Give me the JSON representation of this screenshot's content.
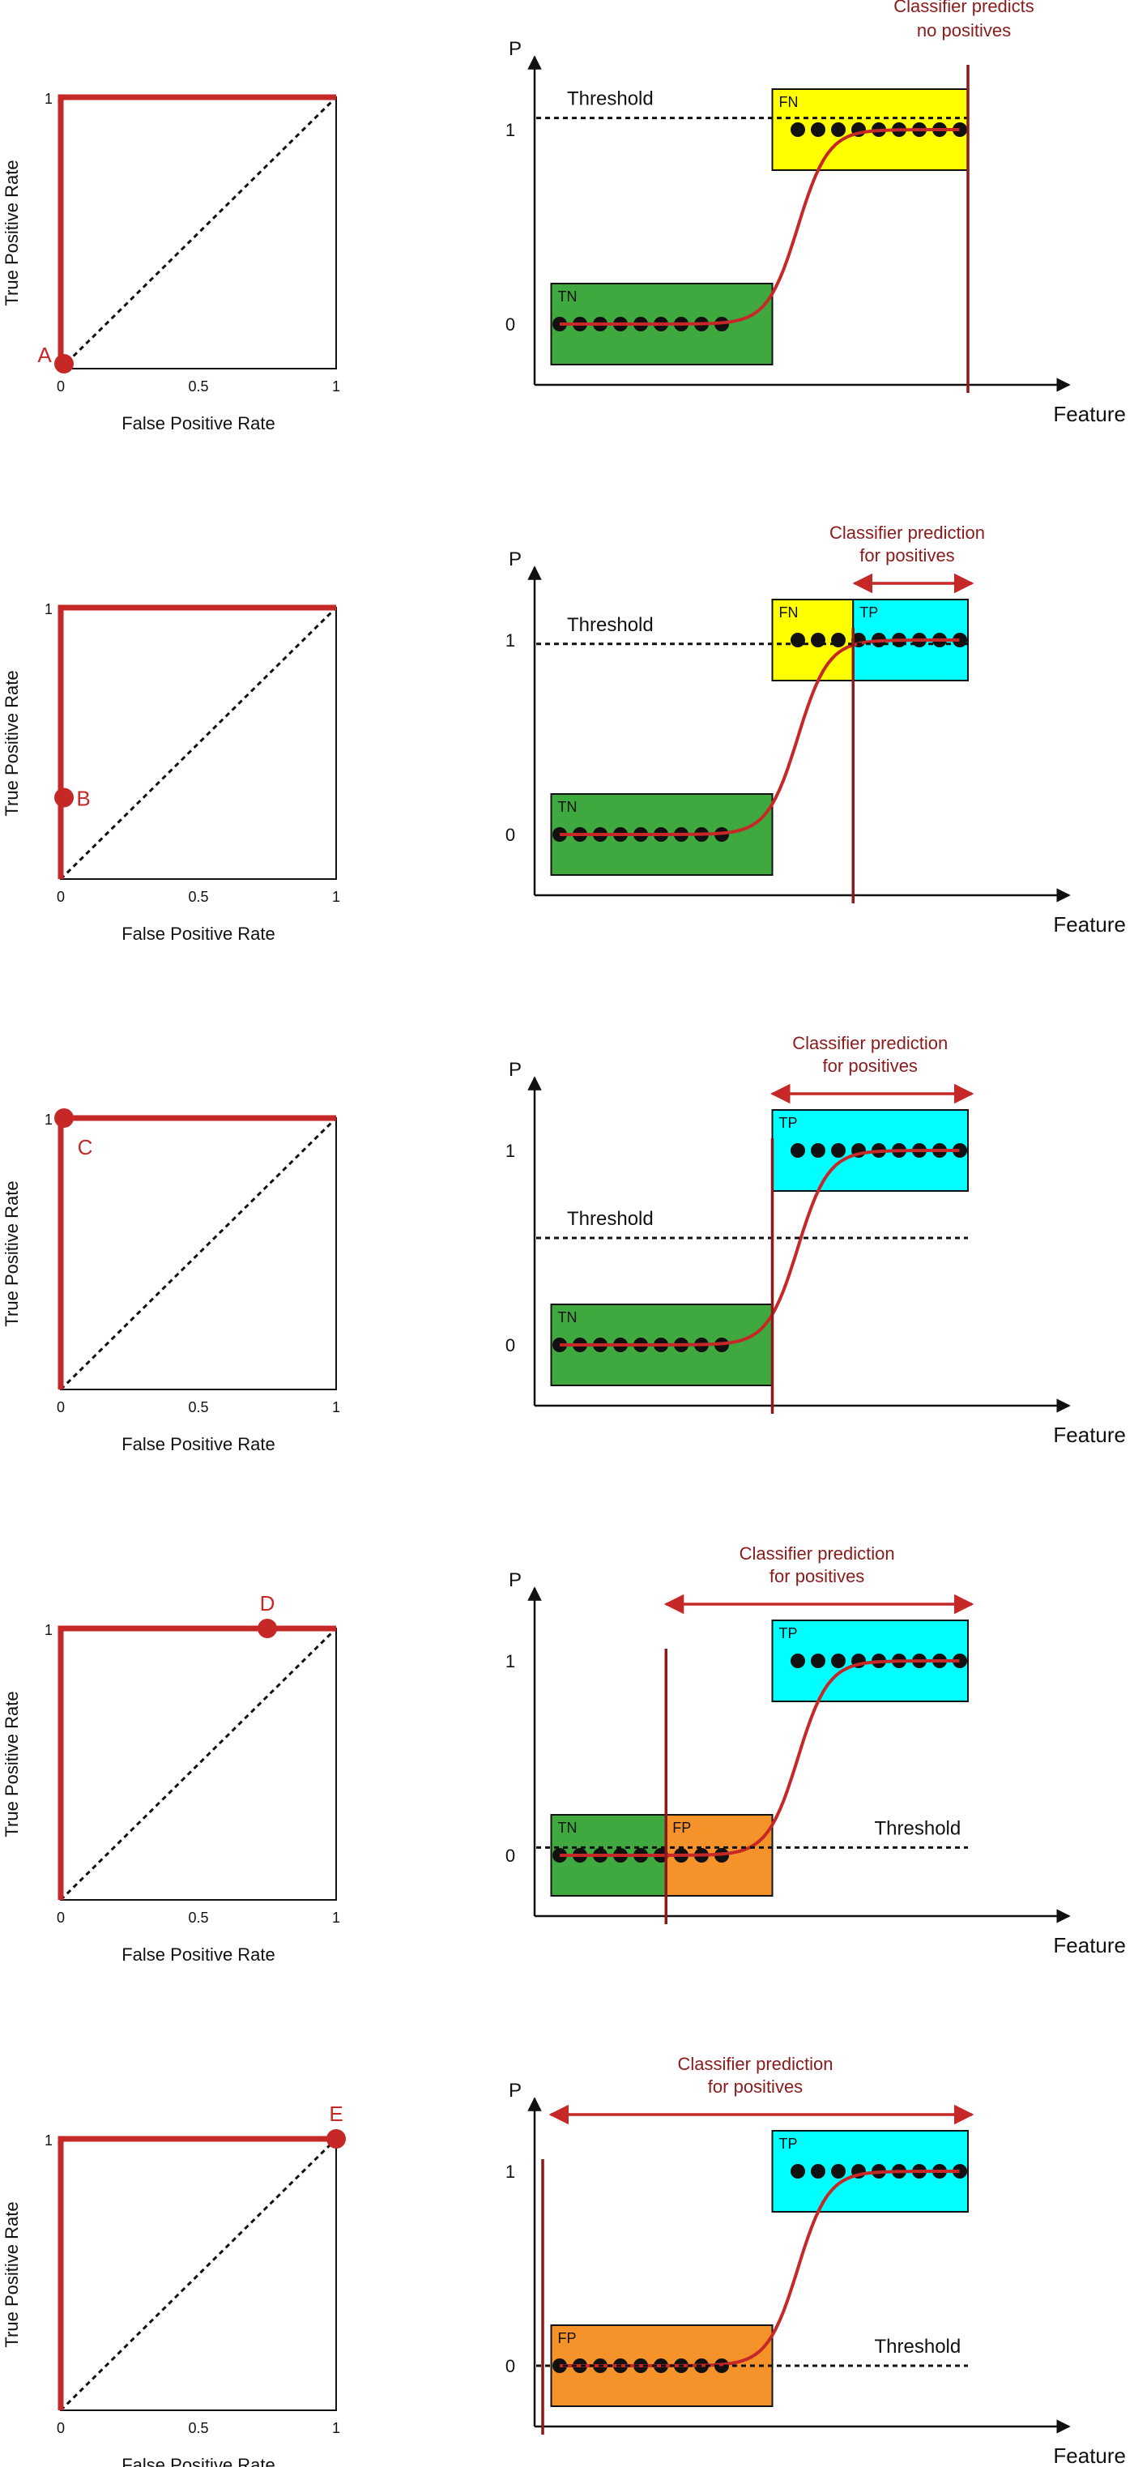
{
  "labels": {
    "roc_x_axis": "False Positive Rate",
    "roc_y_axis": "True Positive Rate",
    "tick_0": "0",
    "tick_half": "0.5",
    "tick_1": "1",
    "p_axis": "P",
    "feature_axis": "Feature",
    "threshold": "Threshold",
    "p_tick_0": "0",
    "p_tick_1": "1"
  },
  "colors": {
    "curve": "#c62828",
    "annotation": "#8b1a1a",
    "tn_box": "#3fa83f",
    "fn_box": "#ffff00",
    "tp_box": "#00ffff",
    "fp_box": "#f5922a",
    "dots": "#111111",
    "axis": "#111111"
  },
  "scenarios": [
    {
      "id": "A",
      "point_label": "A",
      "roc_point": [
        0,
        0
      ],
      "annotation": [
        "Classifier predicts",
        "no positives"
      ],
      "show_prediction_arrow": false,
      "threshold_level": 1.06,
      "threshold_label_side": "left",
      "threshold_line_span": "full",
      "cutoff_feature": 1.0,
      "boxes": [
        {
          "label": "TN",
          "type": "tn",
          "x0": 0.02,
          "x1": 0.54,
          "y_center": 0
        },
        {
          "label": "FN",
          "type": "fn",
          "x0": 0.54,
          "x1": 1.0,
          "y_center": 1
        }
      ]
    },
    {
      "id": "B",
      "point_label": "B",
      "roc_point": [
        0,
        0.3
      ],
      "annotation": [
        "Classifier prediction",
        "for positives"
      ],
      "show_prediction_arrow": true,
      "threshold_level": 0.98,
      "threshold_label_side": "left",
      "threshold_line_span": "full",
      "cutoff_feature": 0.73,
      "boxes": [
        {
          "label": "TN",
          "type": "tn",
          "x0": 0.02,
          "x1": 0.54,
          "y_center": 0
        },
        {
          "label": "FN",
          "type": "fn",
          "x0": 0.54,
          "x1": 0.73,
          "y_center": 1
        },
        {
          "label": "TP",
          "type": "tp",
          "x0": 0.73,
          "x1": 1.0,
          "y_center": 1
        }
      ]
    },
    {
      "id": "C",
      "point_label": "C",
      "roc_point": [
        0,
        1
      ],
      "annotation": [
        "Classifier prediction",
        "for positives"
      ],
      "show_prediction_arrow": true,
      "threshold_level": 0.55,
      "threshold_label_side": "left",
      "threshold_line_span": "full",
      "cutoff_feature": 0.54,
      "boxes": [
        {
          "label": "TN",
          "type": "tn",
          "x0": 0.02,
          "x1": 0.54,
          "y_center": 0
        },
        {
          "label": "TP",
          "type": "tp",
          "x0": 0.54,
          "x1": 1.0,
          "y_center": 1
        }
      ]
    },
    {
      "id": "D",
      "point_label": "D",
      "roc_point": [
        0.75,
        1
      ],
      "annotation": [
        "Classifier prediction",
        "for positives"
      ],
      "show_prediction_arrow": true,
      "threshold_level": 0.04,
      "threshold_label_side": "right",
      "threshold_line_span": "full",
      "cutoff_feature": 0.29,
      "boxes": [
        {
          "label": "TN",
          "type": "tn",
          "x0": 0.02,
          "x1": 0.29,
          "y_center": 0
        },
        {
          "label": "FP",
          "type": "fp",
          "x0": 0.29,
          "x1": 0.54,
          "y_center": 0
        },
        {
          "label": "TP",
          "type": "tp",
          "x0": 0.54,
          "x1": 1.0,
          "y_center": 1
        }
      ]
    },
    {
      "id": "E",
      "point_label": "E",
      "roc_point": [
        1,
        1
      ],
      "annotation": [
        "Classifier prediction",
        "for positives"
      ],
      "show_prediction_arrow": true,
      "threshold_level": 0.0,
      "threshold_label_side": "right",
      "threshold_line_span": "full",
      "cutoff_feature": 0.0,
      "boxes": [
        {
          "label": "FP",
          "type": "fp",
          "x0": 0.02,
          "x1": 0.54,
          "y_center": 0
        },
        {
          "label": "TP",
          "type": "tp",
          "x0": 0.54,
          "x1": 1.0,
          "y_center": 1
        }
      ]
    }
  ]
}
